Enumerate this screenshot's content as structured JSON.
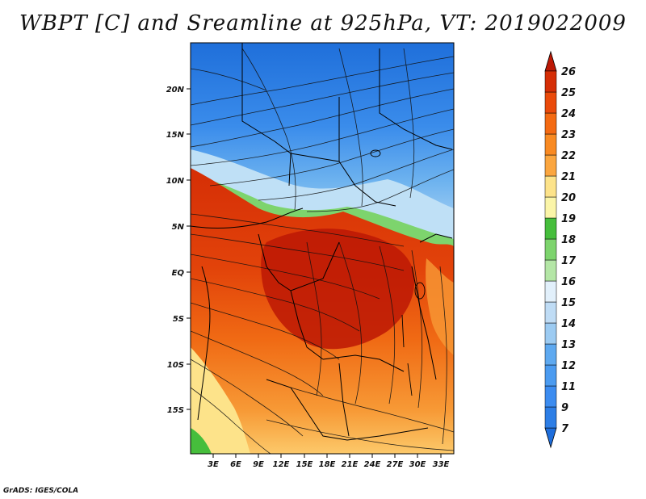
{
  "title": "WBPT [C] and Sreamline at 925hPa, VT: 2019022009",
  "credit": "GrADS: IGES/COLA",
  "map": {
    "lat_labels": [
      "20N",
      "15N",
      "10N",
      "5N",
      "EQ",
      "5S",
      "10S",
      "15S"
    ],
    "lon_labels": [
      "3E",
      "6E",
      "9E",
      "12E",
      "15E",
      "18E",
      "21E",
      "24E",
      "27E",
      "30E",
      "33E"
    ]
  },
  "colorbar": {
    "labels": [
      "7",
      "9",
      "11",
      "12",
      "13",
      "14",
      "15",
      "16",
      "17",
      "18",
      "19",
      "20",
      "21",
      "22",
      "23",
      "24",
      "25",
      "26"
    ],
    "colors": [
      "#1e6edc",
      "#2d7ee6",
      "#3c8cf0",
      "#4b9bf0",
      "#5ea9f0",
      "#7bbaf0",
      "#9ccbf2",
      "#bfdcf5",
      "#e2f0fb",
      "#b4e6a6",
      "#7dd46d",
      "#46be3c",
      "#fbf5a8",
      "#fde38a",
      "#fcc96a",
      "#fba63f",
      "#f98a22",
      "#f46a12",
      "#ea4a0a",
      "#d52e06",
      "#bc1805"
    ]
  }
}
